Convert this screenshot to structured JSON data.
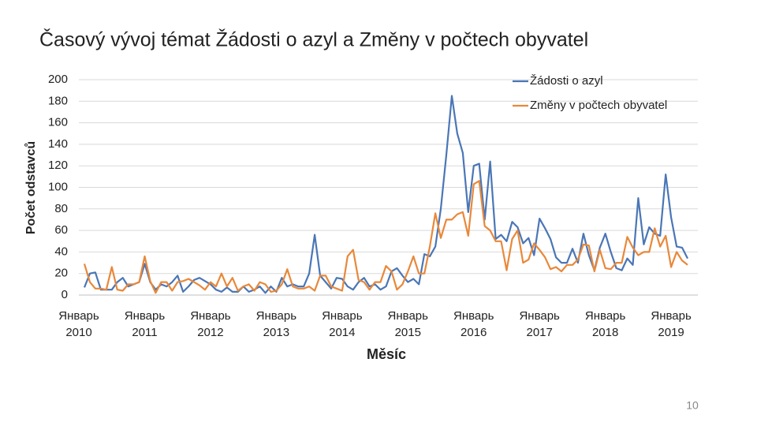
{
  "chart_data": {
    "type": "line",
    "title": "Časový vývoj témat Žádosti o azyl a Změny v počtech obyvatel",
    "ylabel": "Počet odstavců",
    "xlabel": "Měsíc",
    "page_number": "10",
    "categories": [
      "Январь 2010",
      null,
      null,
      null,
      null,
      null,
      null,
      null,
      null,
      null,
      null,
      null,
      "Январь 2011",
      null,
      null,
      null,
      null,
      null,
      null,
      null,
      null,
      null,
      null,
      null,
      "Январь 2012",
      null,
      null,
      null,
      null,
      null,
      null,
      null,
      null,
      null,
      null,
      null,
      "Январь 2013",
      null,
      null,
      null,
      null,
      null,
      null,
      null,
      null,
      null,
      null,
      null,
      "Январь 2014",
      null,
      null,
      null,
      null,
      null,
      null,
      null,
      null,
      null,
      null,
      null,
      "Январь 2015",
      null,
      null,
      null,
      null,
      null,
      null,
      null,
      null,
      null,
      null,
      null,
      "Январь 2016",
      null,
      null,
      null,
      null,
      null,
      null,
      null,
      null,
      null,
      null,
      null,
      "Январь 2017",
      null,
      null,
      null,
      null,
      null,
      null,
      null,
      null,
      null,
      null,
      null,
      "Январь 2018",
      null,
      null,
      null,
      null,
      null,
      null,
      null,
      null,
      null,
      null,
      null,
      "Январь 2019",
      null,
      null
    ],
    "series": [
      {
        "name": "Žádosti o azyl",
        "color": "#4a76b6",
        "values": [
          7,
          20,
          21,
          5,
          5,
          5,
          12,
          16,
          8,
          10,
          12,
          29,
          12,
          5,
          10,
          8,
          12,
          18,
          3,
          8,
          14,
          16,
          13,
          10,
          5,
          3,
          7,
          3,
          3,
          8,
          3,
          5,
          8,
          2,
          8,
          3,
          16,
          8,
          10,
          8,
          8,
          20,
          56,
          18,
          12,
          6,
          16,
          15,
          8,
          5,
          12,
          16,
          8,
          10,
          5,
          8,
          22,
          25,
          18,
          12,
          15,
          10,
          38,
          36,
          45,
          80,
          130,
          185,
          150,
          132,
          77,
          120,
          122,
          70,
          124,
          52,
          56,
          50,
          68,
          63,
          48,
          53,
          37,
          71,
          62,
          52,
          35,
          30,
          30,
          43,
          30,
          57,
          37,
          23,
          44,
          57,
          40,
          25,
          23,
          34,
          28,
          90,
          47,
          63,
          57,
          55,
          112,
          72,
          45,
          44,
          34
        ]
      },
      {
        "name": "Změny v počtech obyvatel",
        "color": "#e8883a",
        "values": [
          29,
          12,
          6,
          6,
          5,
          26,
          5,
          4,
          10,
          10,
          12,
          36,
          13,
          2,
          12,
          12,
          4,
          12,
          13,
          15,
          12,
          9,
          5,
          12,
          8,
          20,
          8,
          16,
          4,
          8,
          10,
          4,
          12,
          10,
          3,
          4,
          10,
          24,
          8,
          6,
          6,
          8,
          4,
          18,
          18,
          8,
          6,
          4,
          36,
          42,
          14,
          12,
          5,
          12,
          12,
          27,
          22,
          5,
          10,
          22,
          36,
          20,
          20,
          45,
          76,
          53,
          70,
          70,
          75,
          77,
          55,
          103,
          106,
          64,
          60,
          50,
          50,
          23,
          52,
          60,
          30,
          33,
          48,
          42,
          35,
          24,
          26,
          22,
          28,
          28,
          33,
          47,
          46,
          22,
          42,
          25,
          24,
          30,
          30,
          54,
          44,
          37,
          40,
          40,
          62,
          45,
          55,
          26,
          40,
          32,
          28
        ]
      }
    ],
    "ylim": [
      0,
      200
    ],
    "yticks": [
      0,
      20,
      40,
      60,
      80,
      100,
      120,
      140,
      160,
      180,
      200
    ],
    "grid": true,
    "legend": "top-right"
  }
}
